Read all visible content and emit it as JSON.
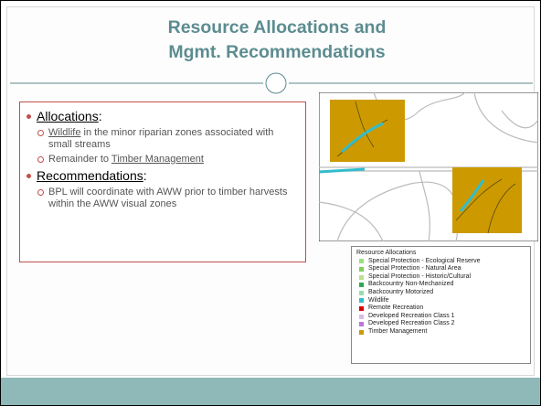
{
  "title": [
    "Resource Allocations and",
    "Mgmt. Recommendations"
  ],
  "bullets": [
    {
      "label": "Allocations",
      "suffix": ":",
      "items": [
        [
          {
            "text": "Wildlife",
            "underline": true
          },
          {
            "text": " in the minor riparian zones associated with small streams",
            "underline": false
          }
        ],
        [
          {
            "text": "Remainder to ",
            "underline": false
          },
          {
            "text": "Timber Management",
            "underline": true
          }
        ]
      ]
    },
    {
      "label": "Recommendations",
      "suffix": ":",
      "items": [
        [
          {
            "text": "BPL will coordinate with AWW prior to timber harvests within the AWW visual zones",
            "underline": false
          }
        ]
      ]
    }
  ],
  "legend": {
    "title": "Resource Allocations",
    "items": [
      {
        "name": "Special Protection - Ecological Reserve",
        "color": "#9be07c"
      },
      {
        "name": "Special Protection - Natural Area",
        "color": "#7fd05e"
      },
      {
        "name": "Special Protection - Historic/Cultural",
        "color": "#b9e08c"
      },
      {
        "name": "Backcountry Non-Mechanized",
        "color": "#2fa853"
      },
      {
        "name": "Backcountry Motorized",
        "color": "#9adcae"
      },
      {
        "name": "Wildlife",
        "color": "#33bccc"
      },
      {
        "name": "Remote Recreation",
        "color": "#e00000"
      },
      {
        "name": "Developed Recreation Class 1",
        "color": "#d9bbe8"
      },
      {
        "name": "Developed Recreation Class 2",
        "color": "#b977dc"
      },
      {
        "name": "Timber Management",
        "color": "#cc9a00"
      }
    ]
  }
}
